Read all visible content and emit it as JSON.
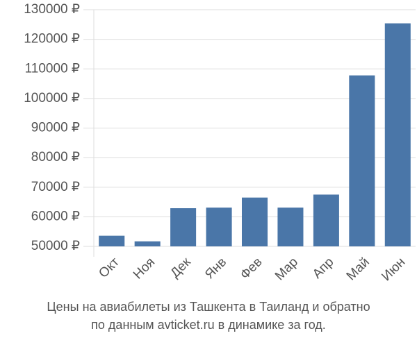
{
  "chart_data": {
    "type": "bar",
    "title": "Цены на авиабилеты из Ташкента в Таиланд и обратно",
    "subtitle": "по данным avticket.ru в динамике за год.",
    "categories": [
      "Окт",
      "Ноя",
      "Дек",
      "Янв",
      "Фев",
      "Мар",
      "Апр",
      "Май",
      "Июн"
    ],
    "values": [
      53600,
      51700,
      62900,
      63100,
      66500,
      63100,
      67500,
      107800,
      125400
    ],
    "color": "#4a76a8",
    "ylim": [
      50000,
      130000
    ],
    "yticks": [
      {
        "value": 50000,
        "label": "50000 ₽"
      },
      {
        "value": 60000,
        "label": "60000 ₽"
      },
      {
        "value": 70000,
        "label": "70000 ₽"
      },
      {
        "value": 80000,
        "label": "80000 ₽"
      },
      {
        "value": 90000,
        "label": "90000 ₽"
      },
      {
        "value": 100000,
        "label": "100000 ₽"
      },
      {
        "value": 110000,
        "label": "110000 ₽"
      },
      {
        "value": 120000,
        "label": "120000 ₽"
      },
      {
        "value": 130000,
        "label": "130000 ₽"
      }
    ],
    "grid": true
  }
}
